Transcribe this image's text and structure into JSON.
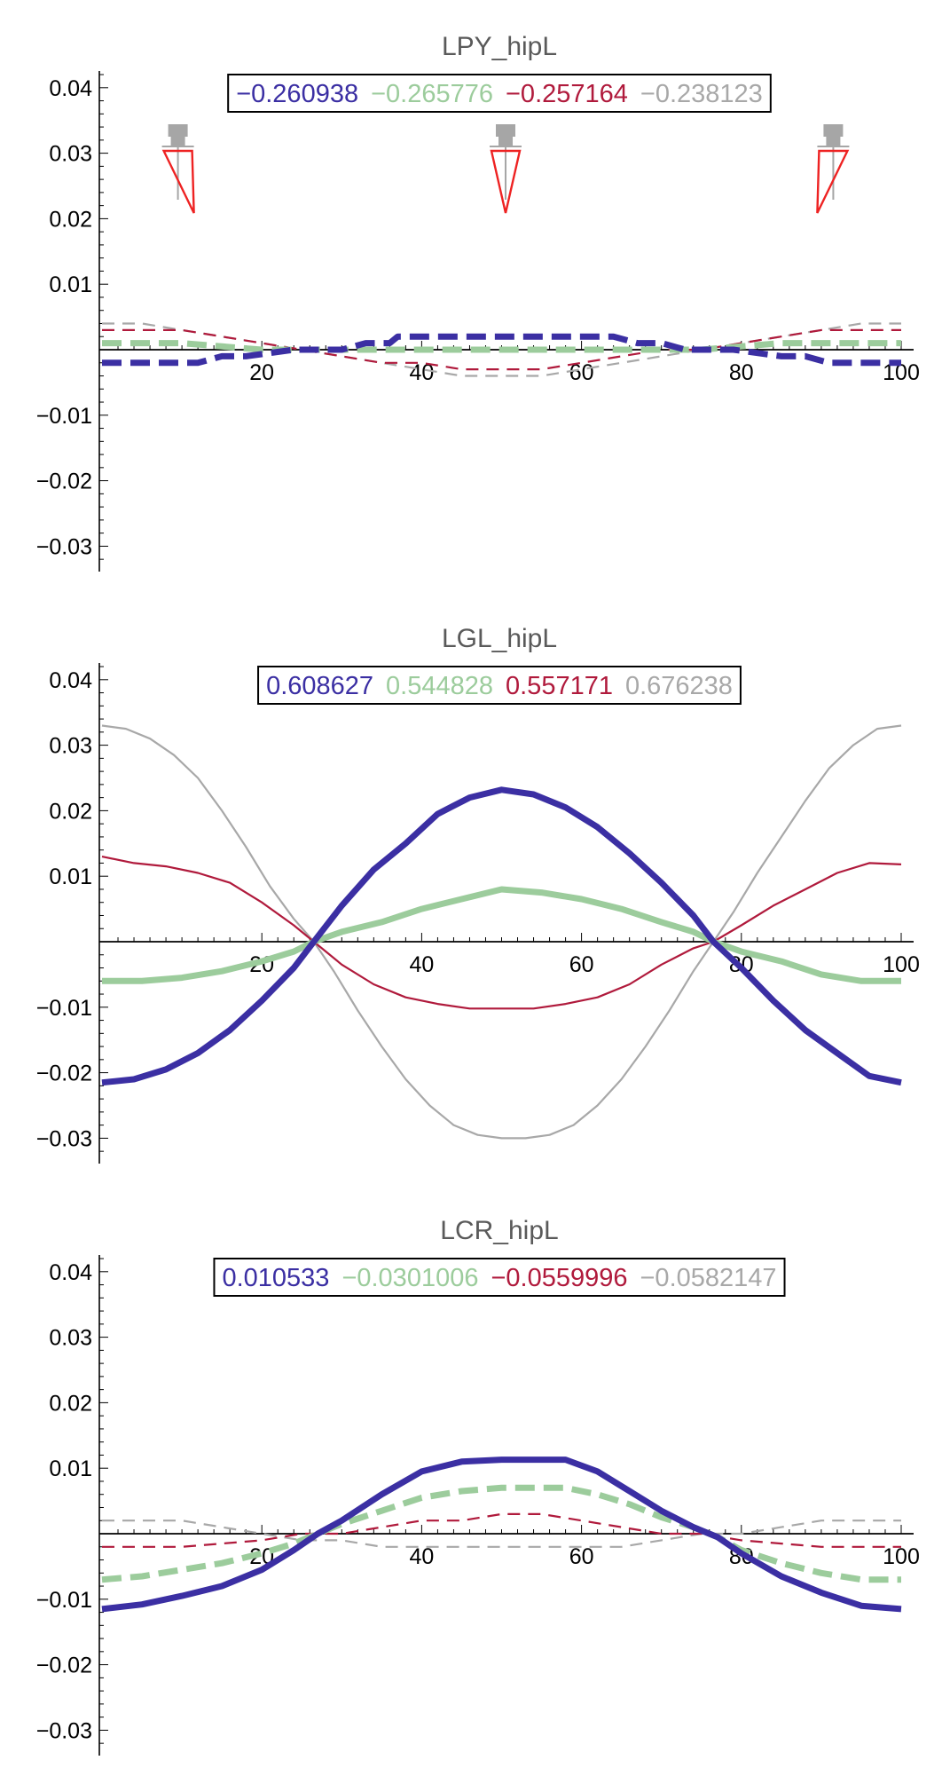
{
  "colors": {
    "blue": "#3b2fa3",
    "green": "#9ccc9c",
    "red": "#b01a3c",
    "gray": "#a8a8a8",
    "marker_red": "#ee2222",
    "marker_gray": "#a6a6a6"
  },
  "chart_data": [
    {
      "type": "line",
      "title": "LPY_hipL",
      "xlim": [
        0,
        100
      ],
      "ylim": [
        -0.034,
        0.043
      ],
      "xticks": [
        20,
        40,
        60,
        80,
        100
      ],
      "yticks": [
        0.04,
        0.03,
        0.02,
        0.01,
        -0.01,
        -0.02,
        -0.03
      ],
      "legend": [
        "−0.260938",
        "−0.265776",
        "−0.257164",
        "−0.238123"
      ],
      "markers": [
        {
          "x": 9.5,
          "red_x": 11.5
        },
        {
          "x": 50.5,
          "red_x": 50.5
        },
        {
          "x": 91.5,
          "red_x": 89.5
        }
      ],
      "series": [
        {
          "color": "blue",
          "style": "dashed",
          "width": "thick",
          "x": [
            0,
            3,
            6,
            9,
            12,
            15,
            18,
            21,
            24,
            27,
            30,
            33,
            36,
            37,
            40,
            43,
            46,
            50,
            54,
            58,
            62,
            64,
            67,
            70,
            73,
            76,
            79,
            82,
            85,
            88,
            91,
            94,
            97,
            100
          ],
          "y": [
            -0.002,
            -0.002,
            -0.002,
            -0.002,
            -0.002,
            -0.001,
            -0.001,
            -0.0005,
            0,
            0,
            0,
            0.001,
            0.001,
            0.002,
            0.002,
            0.002,
            0.002,
            0.002,
            0.002,
            0.002,
            0.002,
            0.002,
            0.001,
            0.001,
            0,
            0,
            0,
            -0.0005,
            -0.001,
            -0.001,
            -0.002,
            -0.002,
            -0.002,
            -0.002
          ]
        },
        {
          "color": "green",
          "style": "dashed",
          "width": "thick",
          "x": [
            0,
            5,
            10,
            15,
            20,
            25,
            30,
            35,
            40,
            45,
            50,
            55,
            60,
            65,
            70,
            75,
            80,
            85,
            90,
            95,
            100
          ],
          "y": [
            0.001,
            0.001,
            0.001,
            0.0005,
            0,
            0,
            0,
            0,
            0,
            0,
            0,
            0,
            0,
            0,
            0,
            0,
            0.0005,
            0.001,
            0.001,
            0.001,
            0.001
          ]
        },
        {
          "color": "red",
          "style": "dashed",
          "width": "thin",
          "x": [
            0,
            5,
            10,
            15,
            20,
            25,
            30,
            35,
            40,
            45,
            50,
            55,
            60,
            65,
            70,
            75,
            80,
            85,
            90,
            95,
            100
          ],
          "y": [
            0.003,
            0.003,
            0.003,
            0.002,
            0.001,
            0,
            -0.001,
            -0.002,
            -0.002,
            -0.003,
            -0.003,
            -0.003,
            -0.002,
            -0.001,
            0,
            0,
            0.001,
            0.002,
            0.003,
            0.003,
            0.003
          ]
        },
        {
          "color": "gray",
          "style": "dashed",
          "width": "thin",
          "x": [
            0,
            5,
            10,
            15,
            20,
            25,
            30,
            35,
            40,
            45,
            50,
            55,
            60,
            65,
            70,
            75,
            80,
            85,
            90,
            95,
            100
          ],
          "y": [
            0.004,
            0.004,
            0.003,
            0.002,
            0.001,
            0,
            -0.001,
            -0.002,
            -0.003,
            -0.004,
            -0.004,
            -0.004,
            -0.003,
            -0.002,
            -0.001,
            0,
            0.001,
            0.002,
            0.003,
            0.004,
            0.004
          ]
        }
      ]
    },
    {
      "type": "line",
      "title": "LGL_hipL",
      "xlim": [
        0,
        100
      ],
      "ylim": [
        -0.034,
        0.043
      ],
      "xticks": [
        20,
        40,
        60,
        80,
        100
      ],
      "yticks": [
        0.04,
        0.03,
        0.02,
        0.01,
        -0.01,
        -0.02,
        -0.03
      ],
      "legend": [
        "0.608627",
        "0.544828",
        "0.557171",
        "0.676238"
      ],
      "series": [
        {
          "color": "blue",
          "style": "solid",
          "width": "thick",
          "x": [
            0,
            4,
            8,
            12,
            16,
            20,
            24,
            26.5,
            30,
            34,
            38,
            42,
            46,
            50,
            54,
            58,
            62,
            66,
            70,
            74,
            76.5,
            80,
            84,
            88,
            92,
            96,
            100
          ],
          "y": [
            -0.0215,
            -0.021,
            -0.0195,
            -0.017,
            -0.0135,
            -0.009,
            -0.004,
            0,
            0.0055,
            0.011,
            0.015,
            0.0195,
            0.022,
            0.0232,
            0.0225,
            0.0205,
            0.0175,
            0.0135,
            0.009,
            0.004,
            0,
            -0.004,
            -0.009,
            -0.0135,
            -0.017,
            -0.0205,
            -0.0215
          ]
        },
        {
          "color": "green",
          "style": "solid",
          "width": "thick",
          "x": [
            0,
            5,
            10,
            15,
            20,
            24,
            26.5,
            30,
            35,
            40,
            45,
            50,
            55,
            60,
            65,
            70,
            74,
            76.5,
            80,
            85,
            90,
            95,
            100
          ],
          "y": [
            -0.006,
            -0.006,
            -0.0055,
            -0.0045,
            -0.003,
            -0.0015,
            0,
            0.0015,
            0.003,
            0.005,
            0.0065,
            0.008,
            0.0075,
            0.0065,
            0.005,
            0.003,
            0.0015,
            0,
            -0.0015,
            -0.003,
            -0.005,
            -0.006,
            -0.006
          ]
        },
        {
          "color": "red",
          "style": "solid",
          "width": "thin",
          "x": [
            0,
            4,
            8,
            12,
            16,
            20,
            24,
            26.5,
            30,
            34,
            38,
            42,
            46,
            50,
            54,
            58,
            62,
            66,
            70,
            74,
            76.5,
            80,
            84,
            88,
            92,
            96,
            100
          ],
          "y": [
            0.013,
            0.012,
            0.0115,
            0.0105,
            0.009,
            0.006,
            0.0025,
            0,
            -0.0035,
            -0.0065,
            -0.0085,
            -0.0095,
            -0.0102,
            -0.0102,
            -0.0102,
            -0.0095,
            -0.0085,
            -0.0065,
            -0.0035,
            -0.001,
            0,
            0.0025,
            0.0055,
            0.008,
            0.0105,
            0.012,
            0.0118
          ]
        },
        {
          "color": "gray",
          "style": "solid",
          "width": "thin",
          "x": [
            0,
            3,
            6,
            9,
            12,
            15,
            18,
            21,
            24,
            26.5,
            29,
            32,
            35,
            38,
            41,
            44,
            47,
            50,
            53,
            56,
            59,
            62,
            65,
            68,
            71,
            74,
            76.5,
            79,
            82,
            85,
            88,
            91,
            94,
            97,
            100
          ],
          "y": [
            0.033,
            0.0325,
            0.031,
            0.0285,
            0.025,
            0.02,
            0.0145,
            0.0085,
            0.0035,
            0,
            -0.0045,
            -0.0105,
            -0.016,
            -0.021,
            -0.025,
            -0.028,
            -0.0295,
            -0.03,
            -0.03,
            -0.0295,
            -0.028,
            -0.025,
            -0.021,
            -0.016,
            -0.0105,
            -0.0045,
            0,
            0.0045,
            0.0105,
            0.016,
            0.0215,
            0.0265,
            0.03,
            0.0325,
            0.033
          ]
        }
      ]
    },
    {
      "type": "line",
      "title": "LCR_hipL",
      "xlim": [
        0,
        100
      ],
      "ylim": [
        -0.034,
        0.043
      ],
      "xticks": [
        20,
        40,
        60,
        80,
        100
      ],
      "yticks": [
        0.04,
        0.03,
        0.02,
        0.01,
        -0.01,
        -0.02,
        -0.03
      ],
      "legend": [
        "0.010533",
        "−0.0301006",
        "−0.0559996",
        "−0.0582147"
      ],
      "series": [
        {
          "color": "blue",
          "style": "solid",
          "width": "thick",
          "x": [
            0,
            5,
            10,
            15,
            20,
            24,
            27,
            30,
            35,
            40,
            45,
            50,
            55,
            58,
            62,
            66,
            70,
            74,
            77,
            80,
            85,
            90,
            95,
            100
          ],
          "y": [
            -0.0115,
            -0.0108,
            -0.0095,
            -0.008,
            -0.0055,
            -0.0025,
            0,
            0.002,
            0.006,
            0.0095,
            0.011,
            0.0113,
            0.0113,
            0.0113,
            0.0095,
            0.0065,
            0.0035,
            0.001,
            -0.0005,
            -0.003,
            -0.0065,
            -0.009,
            -0.011,
            -0.0115
          ]
        },
        {
          "color": "green",
          "style": "dashed",
          "width": "thick",
          "x": [
            0,
            5,
            10,
            15,
            20,
            24,
            27,
            30,
            35,
            40,
            45,
            50,
            55,
            58,
            62,
            66,
            70,
            74,
            77,
            80,
            85,
            90,
            95,
            100
          ],
          "y": [
            -0.007,
            -0.0065,
            -0.0055,
            -0.0045,
            -0.003,
            -0.0015,
            0,
            0.0015,
            0.0035,
            0.0055,
            0.0065,
            0.007,
            0.007,
            0.007,
            0.006,
            0.0045,
            0.0025,
            0.001,
            -0.0005,
            -0.0025,
            -0.0045,
            -0.006,
            -0.007,
            -0.007
          ]
        },
        {
          "color": "red",
          "style": "dashed",
          "width": "thin",
          "x": [
            0,
            5,
            10,
            15,
            20,
            25,
            30,
            35,
            40,
            45,
            50,
            55,
            60,
            65,
            70,
            75,
            80,
            85,
            90,
            95,
            100
          ],
          "y": [
            -0.002,
            -0.002,
            -0.002,
            -0.0015,
            -0.001,
            0,
            0,
            0.001,
            0.002,
            0.002,
            0.003,
            0.003,
            0.002,
            0.001,
            0,
            0,
            -0.001,
            -0.0015,
            -0.002,
            -0.002,
            -0.002
          ]
        },
        {
          "color": "gray",
          "style": "dashed",
          "width": "thin",
          "x": [
            0,
            5,
            10,
            15,
            20,
            25,
            30,
            35,
            40,
            45,
            50,
            55,
            60,
            65,
            70,
            75,
            80,
            85,
            90,
            95,
            100
          ],
          "y": [
            0.002,
            0.002,
            0.002,
            0.001,
            0,
            -0.001,
            -0.001,
            -0.002,
            -0.002,
            -0.002,
            -0.002,
            -0.002,
            -0.002,
            -0.002,
            -0.001,
            0,
            0,
            0.001,
            0.002,
            0.002,
            0.002
          ]
        }
      ]
    }
  ]
}
